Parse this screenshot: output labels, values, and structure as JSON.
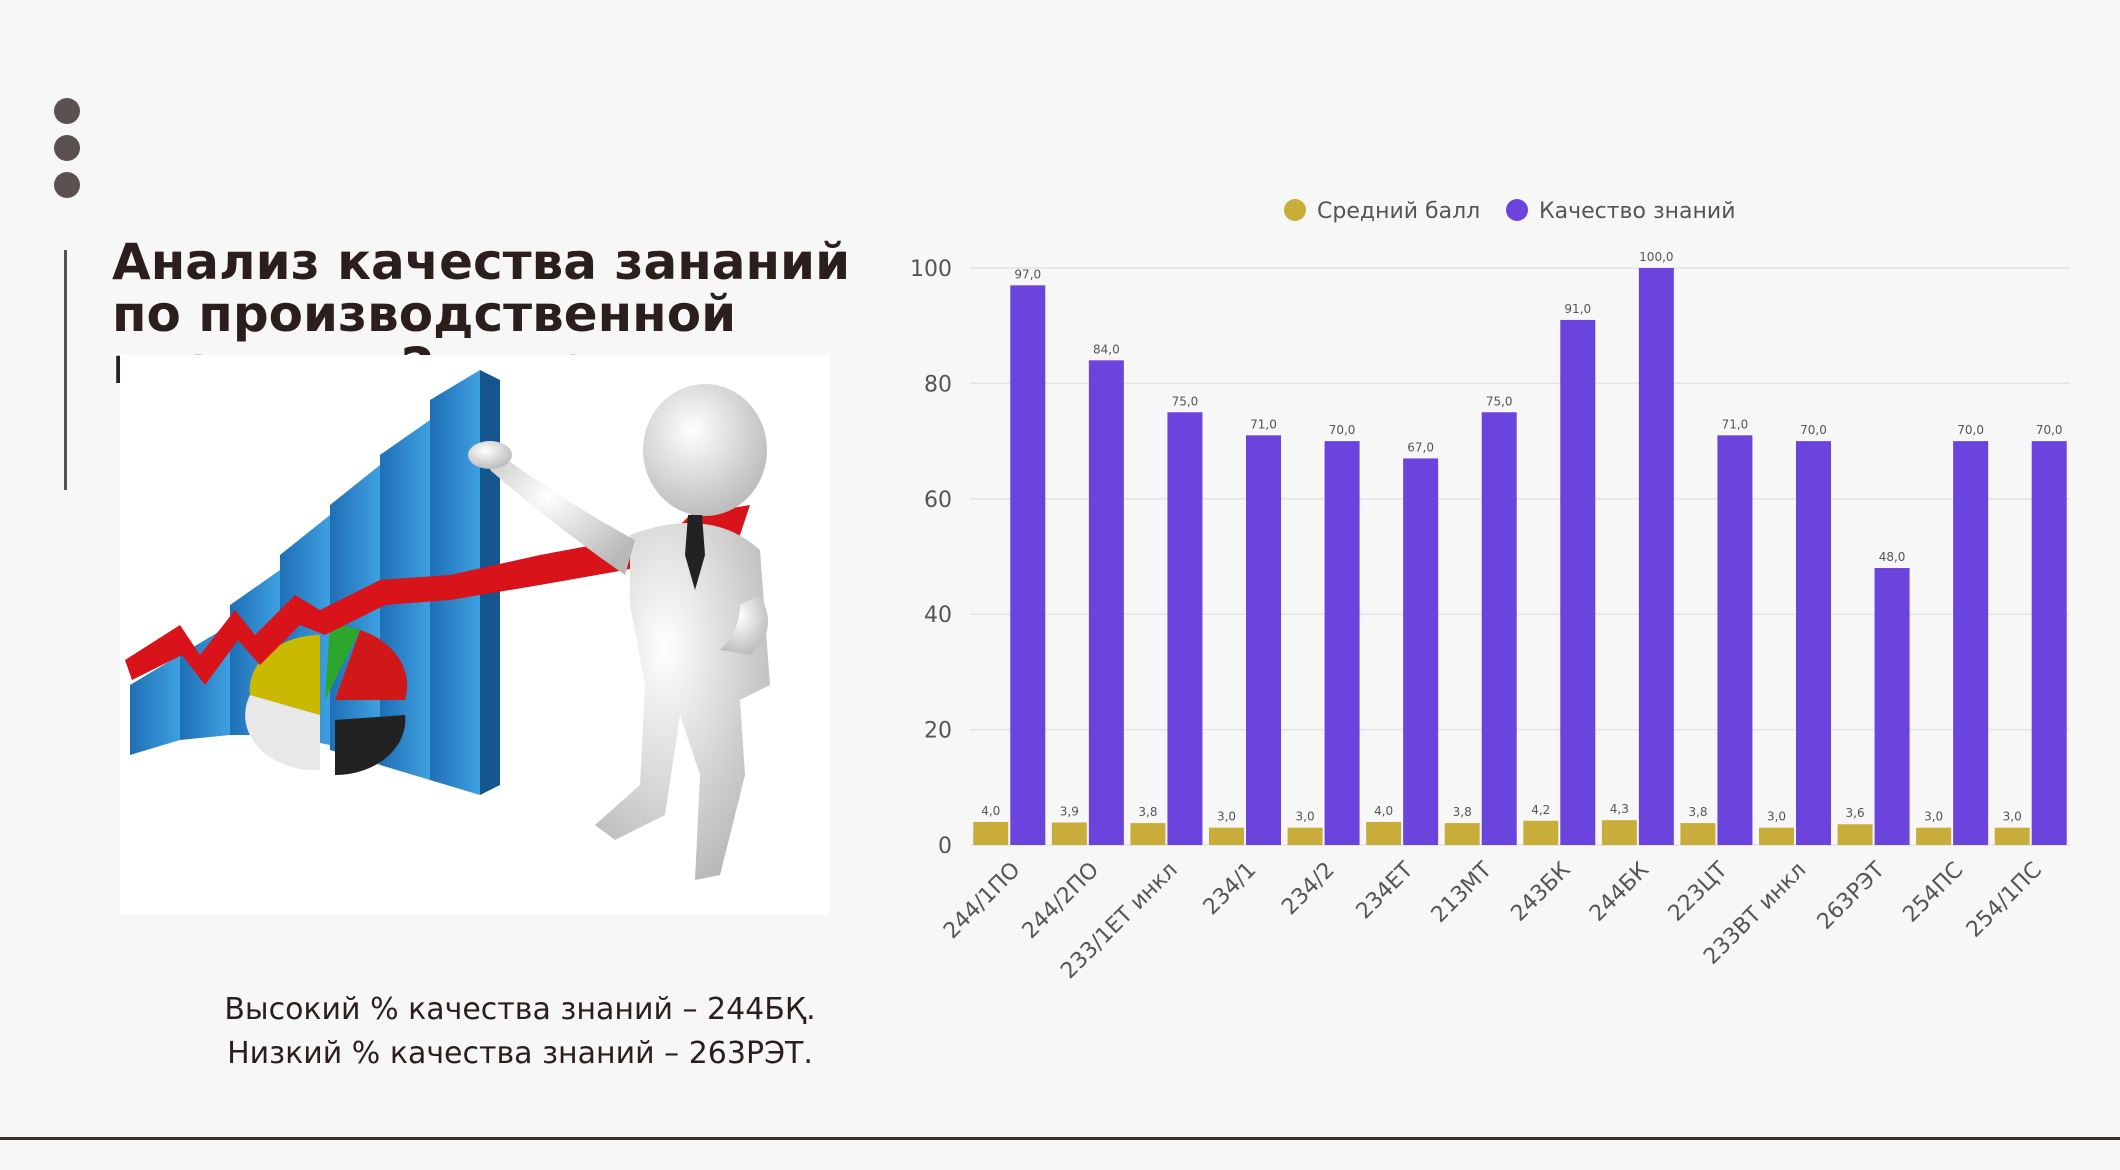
{
  "slide": {
    "title": "Анализ качества зананий по производственной практики 2 курс",
    "caption_line1": "Высокий % качества знаний – 244БҚ.",
    "caption_line2": "Низкий % качества знаний – 263РЭТ."
  },
  "colors": {
    "average": "#c8ad3b",
    "quality": "#6a44dc",
    "grid": "#e4e4e4",
    "text": "#555555"
  },
  "chart_data": {
    "type": "bar",
    "title": "",
    "xlabel": "",
    "ylabel": "",
    "ylim": [
      0,
      100
    ],
    "yticks": [
      0,
      20,
      40,
      60,
      80,
      100
    ],
    "grid": true,
    "legend_position": "top",
    "categories": [
      "244/1ПО",
      "244/2ПО",
      "233/1ЕТ инкл",
      "234/1",
      "234/2",
      "234ЕТ",
      "213МТ",
      "243БК",
      "244БК",
      "223ЦТ",
      "233ВТ инкл",
      "263РЭТ",
      "254ПС",
      "254/1ПС"
    ],
    "series": [
      {
        "name": "Средний балл",
        "values": [
          4.0,
          3.9,
          3.8,
          3.0,
          3.0,
          4.0,
          3.8,
          4.2,
          4.3,
          3.8,
          3.0,
          3.6,
          3.0,
          3.0
        ],
        "labels": [
          "4,0",
          "3,9",
          "3,8",
          "3,0",
          "3,0",
          "4,0",
          "3,8",
          "4,2",
          "4,3",
          "3,8",
          "3,0",
          "3,6",
          "3,0",
          "3,0"
        ]
      },
      {
        "name": "Качество знаний",
        "values": [
          97.0,
          84.0,
          75.0,
          71.0,
          70.0,
          67.0,
          75.0,
          91.0,
          100.0,
          71.0,
          70.0,
          48.0,
          70.0,
          70.0
        ],
        "labels": [
          "97,0",
          "84,0",
          "75,0",
          "71,0",
          "70,0",
          "67,0",
          "75,0",
          "91,0",
          "100,0",
          "71,0",
          "70,0",
          "48,0",
          "70,0",
          "70,0"
        ]
      }
    ]
  }
}
